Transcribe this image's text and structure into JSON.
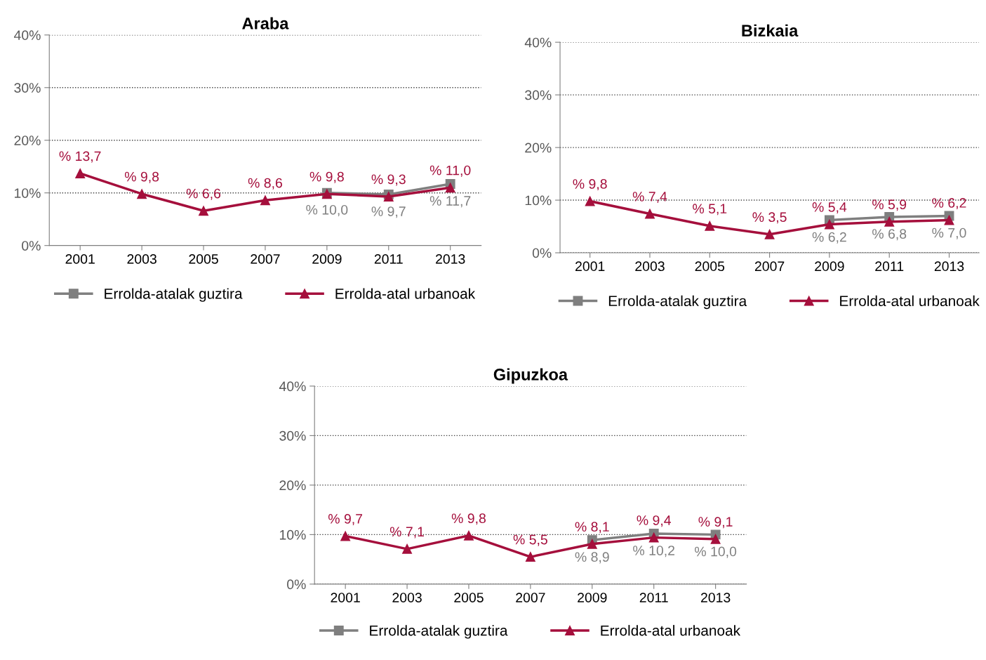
{
  "chart_data": [
    {
      "type": "line",
      "title": "Araba",
      "categories": [
        "2001",
        "2003",
        "2005",
        "2007",
        "2009",
        "2011",
        "2013"
      ],
      "ylim": [
        0,
        40
      ],
      "yticks": [
        {
          "value": 0,
          "label": "0%"
        },
        {
          "value": 10,
          "label": "10%"
        },
        {
          "value": 20,
          "label": "20%"
        },
        {
          "value": 30,
          "label": "30%"
        },
        {
          "value": 40,
          "label": "40%"
        }
      ],
      "grid": "y",
      "legend": "bottom",
      "line_style": "solid",
      "series": [
        {
          "name": "Errolda-atalak guztira",
          "color": "#7f7f7f",
          "marker": "square",
          "values": [
            null,
            null,
            null,
            null,
            10.0,
            9.7,
            11.7
          ],
          "value_labels": [
            null,
            null,
            null,
            null,
            "% 10,0",
            "% 9,7",
            "% 11,7"
          ]
        },
        {
          "name": "Errolda-atal urbanoak",
          "color": "#a50f3c",
          "marker": "triangle",
          "values": [
            13.7,
            9.8,
            6.6,
            8.6,
            9.8,
            9.3,
            11.0
          ],
          "value_labels": [
            "% 13,7",
            "% 9,8",
            "% 6,6",
            "% 8,6",
            "% 9,8",
            "% 9,3",
            "% 11,0"
          ]
        }
      ]
    },
    {
      "type": "line",
      "title": "Bizkaia",
      "categories": [
        "2001",
        "2003",
        "2005",
        "2007",
        "2009",
        "2011",
        "2013"
      ],
      "ylim": [
        0,
        40
      ],
      "yticks": [
        {
          "value": 0,
          "label": "0%"
        },
        {
          "value": 10,
          "label": "10%"
        },
        {
          "value": 20,
          "label": "20%"
        },
        {
          "value": 30,
          "label": "30%"
        },
        {
          "value": 40,
          "label": "40%"
        }
      ],
      "grid": "y",
      "legend": "bottom",
      "line_style": "solid",
      "series": [
        {
          "name": "Errolda-atalak guztira",
          "color": "#7f7f7f",
          "marker": "square",
          "values": [
            null,
            null,
            null,
            null,
            6.2,
            6.8,
            7.0
          ],
          "value_labels": [
            null,
            null,
            null,
            null,
            "% 6,2",
            "% 6,8",
            "% 7,0"
          ]
        },
        {
          "name": "Errolda-atal urbanoak",
          "color": "#a50f3c",
          "marker": "triangle",
          "values": [
            9.8,
            7.4,
            5.1,
            3.5,
            5.4,
            5.9,
            6.2
          ],
          "value_labels": [
            "% 9,8",
            "% 7,4",
            "% 5,1",
            "% 3,5",
            "% 5,4",
            "% 5,9",
            "% 6,2"
          ]
        }
      ]
    },
    {
      "type": "line",
      "title": "Gipuzkoa",
      "categories": [
        "2001",
        "2003",
        "2005",
        "2007",
        "2009",
        "2011",
        "2013"
      ],
      "ylim": [
        0,
        40
      ],
      "yticks": [
        {
          "value": 0,
          "label": "0%"
        },
        {
          "value": 10,
          "label": "10%"
        },
        {
          "value": 20,
          "label": "20%"
        },
        {
          "value": 30,
          "label": "30%"
        },
        {
          "value": 40,
          "label": "40%"
        }
      ],
      "grid": "y",
      "legend": "bottom",
      "line_style": "solid",
      "series": [
        {
          "name": "Errolda-atalak guztira",
          "color": "#7f7f7f",
          "marker": "square",
          "values": [
            null,
            null,
            null,
            null,
            8.9,
            10.2,
            10.0
          ],
          "value_labels": [
            null,
            null,
            null,
            null,
            "% 8,9",
            "% 10,2",
            "% 10,0"
          ]
        },
        {
          "name": "Errolda-atal urbanoak",
          "color": "#a50f3c",
          "marker": "triangle",
          "values": [
            9.7,
            7.1,
            9.8,
            5.5,
            8.1,
            9.4,
            9.1
          ],
          "value_labels": [
            "% 9,7",
            "% 7,1",
            "% 9,8",
            "% 5,5",
            "% 8,1",
            "% 9,4",
            "% 9,1"
          ]
        }
      ]
    }
  ]
}
